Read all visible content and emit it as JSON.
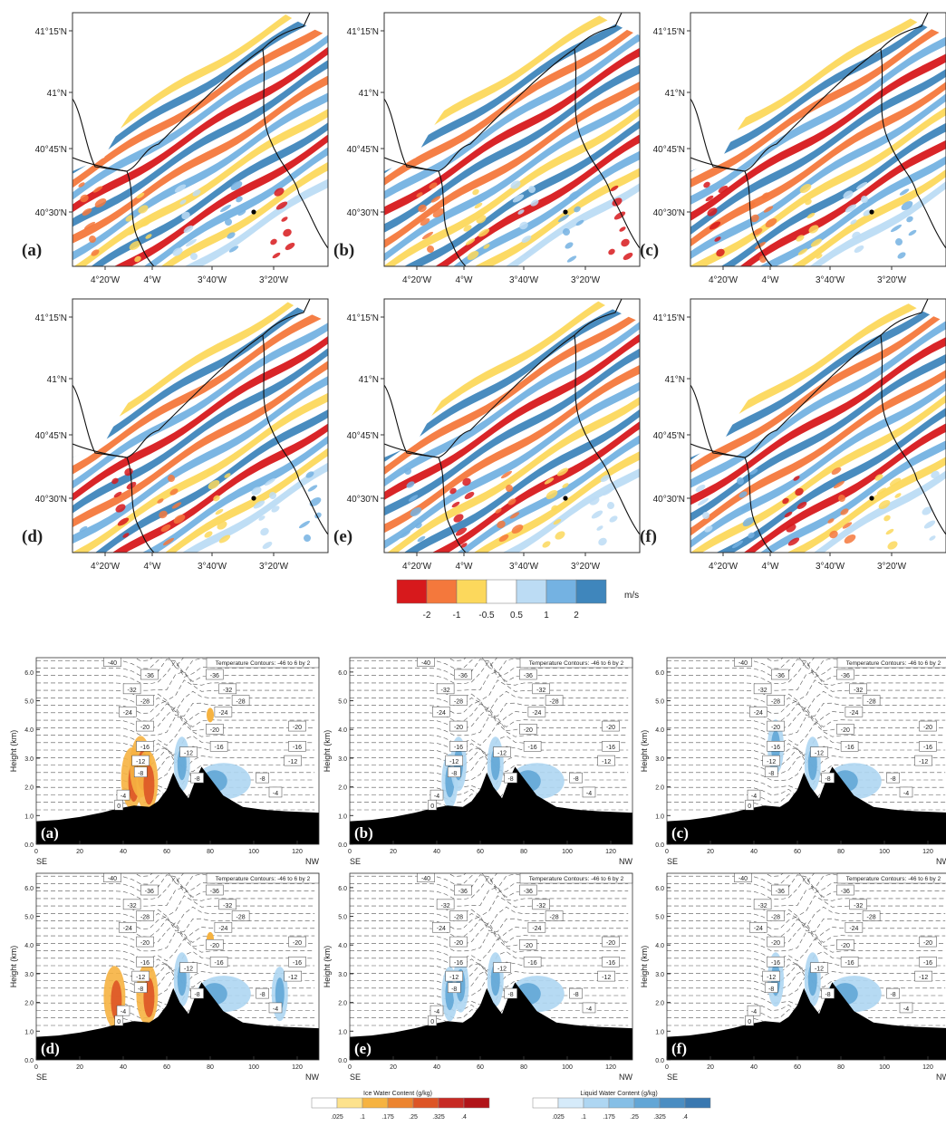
{
  "chart_data": [
    {
      "type": "heatmap",
      "group": "maps",
      "panels": [
        "(a)",
        "(b)",
        "(c)",
        "(d)",
        "(e)",
        "(f)"
      ],
      "lat_ticks": [
        "41°15'N",
        "41°N",
        "40°45'N",
        "40°30'N"
      ],
      "lon_ticks": [
        "4°20'W",
        "4°W",
        "3°40'W",
        "3°20'W"
      ],
      "colorbar": {
        "unit": "m/s",
        "labels": [
          "-2",
          "-1",
          "-0.5",
          "0.5",
          "1",
          "2"
        ],
        "colors": [
          "#d7191c",
          "#f4783c",
          "#fcd85c",
          "#ffffff",
          "#bcdcf4",
          "#74b2e2",
          "#3f86bc"
        ]
      }
    },
    {
      "type": "area",
      "group": "cross-sections",
      "panels": [
        "(a)",
        "(b)",
        "(c)",
        "(d)",
        "(e)",
        "(f)"
      ],
      "annotation": "Temperature Contours: -46 to 6 by 2",
      "ylabel": "Height (km)",
      "y_ticks": [
        "0.0",
        "1.0",
        "2.0",
        "3.0",
        "4.0",
        "5.0",
        "6.0"
      ],
      "ylim": [
        0,
        6.5
      ],
      "x_ticks": [
        "0",
        "20",
        "40",
        "60",
        "80",
        "100",
        "120"
      ],
      "xlim": [
        0,
        130
      ],
      "x_end_labels": [
        "SE",
        "NW"
      ],
      "terrain": {
        "x": [
          0,
          10,
          20,
          30,
          38,
          45,
          52,
          56,
          60,
          63,
          66,
          70,
          73,
          76,
          80,
          86,
          95,
          105,
          115,
          130
        ],
        "y": [
          0.8,
          0.85,
          0.95,
          1.1,
          1.25,
          1.35,
          1.3,
          1.5,
          1.9,
          2.5,
          2.0,
          1.6,
          2.2,
          2.7,
          2.3,
          1.7,
          1.3,
          1.2,
          1.15,
          1.1
        ]
      },
      "isotherm_labels": [
        {
          "t": "-40",
          "x": 35,
          "y": 6.35
        },
        {
          "t": "-36",
          "x": 52,
          "y": 5.9
        },
        {
          "t": "-36",
          "x": 82,
          "y": 5.9
        },
        {
          "t": "-32",
          "x": 44,
          "y": 5.4
        },
        {
          "t": "-32",
          "x": 88,
          "y": 5.4
        },
        {
          "t": "-28",
          "x": 50,
          "y": 5.0
        },
        {
          "t": "-28",
          "x": 94,
          "y": 5.0
        },
        {
          "t": "-24",
          "x": 42,
          "y": 4.6
        },
        {
          "t": "-24",
          "x": 86,
          "y": 4.6
        },
        {
          "t": "-20",
          "x": 50,
          "y": 4.1
        },
        {
          "t": "-20",
          "x": 82,
          "y": 4.0
        },
        {
          "t": "-20",
          "x": 120,
          "y": 4.1
        },
        {
          "t": "-16",
          "x": 50,
          "y": 3.4
        },
        {
          "t": "-16",
          "x": 84,
          "y": 3.4
        },
        {
          "t": "-16",
          "x": 120,
          "y": 3.4
        },
        {
          "t": "-12",
          "x": 48,
          "y": 2.9
        },
        {
          "t": "-12",
          "x": 70,
          "y": 3.2
        },
        {
          "t": "-12",
          "x": 118,
          "y": 2.9
        },
        {
          "t": "-8",
          "x": 48,
          "y": 2.5
        },
        {
          "t": "-8",
          "x": 74,
          "y": 2.3
        },
        {
          "t": "-8",
          "x": 104,
          "y": 2.3
        },
        {
          "t": "-4",
          "x": 40,
          "y": 1.7
        },
        {
          "t": "-4",
          "x": 110,
          "y": 1.8
        },
        {
          "t": "0",
          "x": 38,
          "y": 1.35
        }
      ],
      "ice_water_content": {
        "title": "Ice Water Content  (g/kg)",
        "labels": [
          ".025",
          ".1",
          ".175",
          ".25",
          ".325",
          ".4"
        ],
        "colors": [
          "#ffffff",
          "#fde28c",
          "#f6b341",
          "#ec8430",
          "#dd5526",
          "#c72a24",
          "#b11419"
        ]
      },
      "liquid_water_content": {
        "title": "Liquid Water Content  (g/kg)",
        "labels": [
          ".025",
          ".1",
          ".175",
          ".25",
          ".325",
          ".4"
        ],
        "colors": [
          "#ffffff",
          "#d6ebfa",
          "#aed6f2",
          "#86bfe6",
          "#62a6d6",
          "#4a8dc2",
          "#3a78b0"
        ]
      },
      "panel_features": [
        {
          "ice": [
            [
              44,
              2.3
            ],
            [
              48,
              2.7
            ],
            [
              51,
              2.2
            ]
          ],
          "liquid": [
            [
              67,
              2.8
            ],
            [
              82,
              2.2
            ]
          ],
          "ice_top": [
            80,
            4.5
          ]
        },
        {
          "ice": [],
          "liquid": [
            [
              46,
              2.2
            ],
            [
              50,
              2.8
            ],
            [
              67,
              2.8
            ],
            [
              82,
              2.2
            ]
          ]
        },
        {
          "ice": [],
          "liquid": [
            [
              50,
              3.4
            ],
            [
              67,
              2.8
            ],
            [
              82,
              2.2
            ]
          ]
        },
        {
          "ice": [
            [
              36,
              2.2
            ],
            [
              51,
              2.3
            ]
          ],
          "liquid": [
            [
              67,
              2.8
            ],
            [
              82,
              2.3
            ],
            [
              112,
              2.3
            ]
          ],
          "ice_top": [
            80,
            4.2
          ]
        },
        {
          "ice": [],
          "liquid": [
            [
              46,
              2.3
            ],
            [
              51,
              2.6
            ],
            [
              67,
              2.8
            ],
            [
              82,
              2.3
            ]
          ]
        },
        {
          "ice": [],
          "liquid": [
            [
              50,
              2.8
            ],
            [
              67,
              2.8
            ],
            [
              82,
              2.3
            ]
          ]
        }
      ]
    }
  ]
}
